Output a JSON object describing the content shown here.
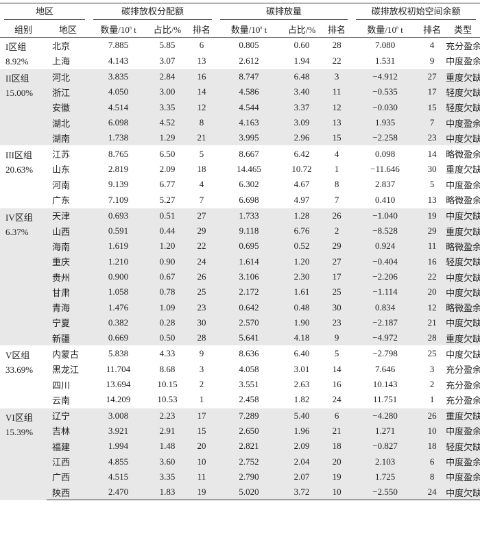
{
  "header": {
    "region": "地区",
    "allocation": "碳排放权分配额",
    "emission": "碳排放量",
    "surplus": "碳排放权初始空间余额",
    "group": "组别",
    "province": "地区",
    "qty": "数量/10",
    "qty_exp": "8",
    "qty_unit": " t",
    "share": "占比/%",
    "rank": "排名",
    "type": "类型"
  },
  "groups": [
    {
      "label": "I区组",
      "share": "8.92%",
      "shaded": false,
      "rows": [
        [
          "北京",
          "7.885",
          "5.85",
          "6",
          "0.805",
          "0.60",
          "28",
          "7.080",
          "4",
          "充分盈余"
        ],
        [
          "上海",
          "4.143",
          "3.07",
          "13",
          "2.612",
          "1.94",
          "22",
          "1.531",
          "9",
          "中度盈余"
        ]
      ]
    },
    {
      "label": "II区组",
      "share": "15.00%",
      "shaded": true,
      "rows": [
        [
          "河北",
          "3.835",
          "2.84",
          "16",
          "8.747",
          "6.48",
          "3",
          "−4.912",
          "27",
          "重度欠缺"
        ],
        [
          "浙江",
          "4.050",
          "3.00",
          "14",
          "4.586",
          "3.40",
          "11",
          "−0.535",
          "17",
          "轻度欠缺"
        ],
        [
          "安徽",
          "4.514",
          "3.35",
          "12",
          "4.544",
          "3.37",
          "12",
          "−0.030",
          "15",
          "轻度欠缺"
        ],
        [
          "湖北",
          "6.098",
          "4.52",
          "8",
          "4.163",
          "3.09",
          "13",
          "1.935",
          "7",
          "中度盈余"
        ],
        [
          "湖南",
          "1.738",
          "1.29",
          "21",
          "3.995",
          "2.96",
          "15",
          "−2.258",
          "23",
          "中度欠缺"
        ]
      ]
    },
    {
      "label": "III区组",
      "share": "20.63%",
      "shaded": false,
      "rows": [
        [
          "江苏",
          "8.765",
          "6.50",
          "5",
          "8.667",
          "6.42",
          "4",
          "0.098",
          "14",
          "略微盈余"
        ],
        [
          "山东",
          "2.819",
          "2.09",
          "18",
          "14.465",
          "10.72",
          "1",
          "−11.646",
          "30",
          "重度欠缺"
        ],
        [
          "河南",
          "9.139",
          "6.77",
          "4",
          "6.302",
          "4.67",
          "8",
          "2.837",
          "5",
          "中度盈余"
        ],
        [
          "广东",
          "7.109",
          "5.27",
          "7",
          "6.698",
          "4.97",
          "7",
          "0.410",
          "13",
          "略微盈余"
        ]
      ]
    },
    {
      "label": "IV区组",
      "share": "6.37%",
      "shaded": true,
      "rows": [
        [
          "天津",
          "0.693",
          "0.51",
          "27",
          "1.733",
          "1.28",
          "26",
          "−1.040",
          "19",
          "中度欠缺"
        ],
        [
          "山西",
          "0.591",
          "0.44",
          "29",
          "9.118",
          "6.76",
          "2",
          "−8.528",
          "29",
          "重度欠缺"
        ],
        [
          "海南",
          "1.619",
          "1.20",
          "22",
          "0.695",
          "0.52",
          "29",
          "0.924",
          "11",
          "略微盈余"
        ],
        [
          "重庆",
          "1.210",
          "0.90",
          "24",
          "1.614",
          "1.20",
          "27",
          "−0.404",
          "16",
          "轻度欠缺"
        ],
        [
          "贵州",
          "0.900",
          "0.67",
          "26",
          "3.106",
          "2.30",
          "17",
          "−2.206",
          "22",
          "中度欠缺"
        ],
        [
          "甘肃",
          "1.058",
          "0.78",
          "25",
          "2.172",
          "1.61",
          "25",
          "−1.114",
          "20",
          "中度欠缺"
        ],
        [
          "青海",
          "1.476",
          "1.09",
          "23",
          "0.642",
          "0.48",
          "30",
          "0.834",
          "12",
          "略微盈余"
        ],
        [
          "宁夏",
          "0.382",
          "0.28",
          "30",
          "2.570",
          "1.90",
          "23",
          "−2.187",
          "21",
          "中度欠缺"
        ],
        [
          "新疆",
          "0.669",
          "0.50",
          "28",
          "5.641",
          "4.18",
          "9",
          "−4.972",
          "28",
          "重度欠缺"
        ]
      ]
    },
    {
      "label": "V区组",
      "share": "33.69%",
      "shaded": false,
      "rows": [
        [
          "内蒙古",
          "5.838",
          "4.33",
          "9",
          "8.636",
          "6.40",
          "5",
          "−2.798",
          "25",
          "中度欠缺"
        ],
        [
          "黑龙江",
          "11.704",
          "8.68",
          "3",
          "4.058",
          "3.01",
          "14",
          "7.646",
          "3",
          "充分盈余"
        ],
        [
          "四川",
          "13.694",
          "10.15",
          "2",
          "3.551",
          "2.63",
          "16",
          "10.143",
          "2",
          "充分盈余"
        ],
        [
          "云南",
          "14.209",
          "10.53",
          "1",
          "2.458",
          "1.82",
          "24",
          "11.751",
          "1",
          "充分盈余"
        ]
      ]
    },
    {
      "label": "VI区组",
      "share": "15.39%",
      "shaded": true,
      "rows": [
        [
          "辽宁",
          "3.008",
          "2.23",
          "17",
          "7.289",
          "5.40",
          "6",
          "−4.280",
          "26",
          "重度欠缺"
        ],
        [
          "吉林",
          "3.921",
          "2.91",
          "15",
          "2.650",
          "1.96",
          "21",
          "1.271",
          "10",
          "中度盈余"
        ],
        [
          "福建",
          "1.994",
          "1.48",
          "20",
          "2.821",
          "2.09",
          "18",
          "−0.827",
          "18",
          "轻度欠缺"
        ],
        [
          "江西",
          "4.855",
          "3.60",
          "10",
          "2.752",
          "2.04",
          "20",
          "2.103",
          "6",
          "中度盈余"
        ],
        [
          "广西",
          "4.515",
          "3.35",
          "11",
          "2.790",
          "2.07",
          "19",
          "1.725",
          "8",
          "中度盈余"
        ],
        [
          "陕西",
          "2.470",
          "1.83",
          "19",
          "5.020",
          "3.72",
          "10",
          "−2.550",
          "24",
          "中度欠缺"
        ]
      ]
    }
  ]
}
